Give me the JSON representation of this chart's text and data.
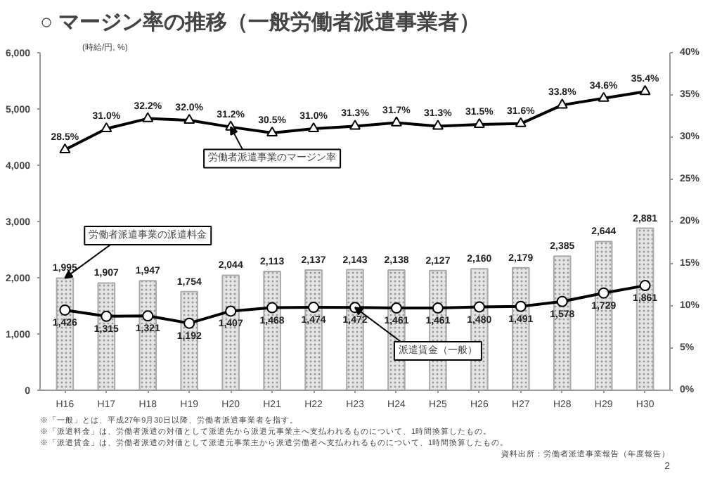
{
  "chart_data": {
    "type": "bar",
    "title": "○ マージン率の推移（一般労働者派遣事業者）",
    "ylabel": "(時給/円, %)",
    "categories": [
      "H16",
      "H17",
      "H18",
      "H19",
      "H20",
      "H21",
      "H22",
      "H23",
      "H24",
      "H25",
      "H26",
      "H27",
      "H28",
      "H29",
      "H30"
    ],
    "series": [
      {
        "name": "労働者派遣事業の派遣料金",
        "color": "#e4e4e4",
        "values": [
          1995,
          1907,
          1947,
          1754,
          2044,
          2113,
          2137,
          2143,
          2138,
          2127,
          2160,
          2179,
          2385,
          2644,
          2881
        ],
        "value_labels": [
          "1,995",
          "1,907",
          "1,947",
          "1,754",
          "2,044",
          "2,113",
          "2,137",
          "2,143",
          "2,138",
          "2,127",
          "2,160",
          "2,179",
          "2,385",
          "2,644",
          "2,881"
        ]
      },
      {
        "name": "派遣賃金（一般）",
        "type": "line",
        "marker": "circle",
        "color": "#000000",
        "values": [
          1426,
          1315,
          1321,
          1192,
          1407,
          1468,
          1474,
          1472,
          1461,
          1461,
          1480,
          1491,
          1578,
          1729,
          1861
        ],
        "value_labels": [
          "1,426",
          "1,315",
          "1,321",
          "1,192",
          "1,407",
          "1,468",
          "1,474",
          "1,472",
          "1,461",
          "1,461",
          "1,480",
          "1,491",
          "1,578",
          "1,729",
          "1,861"
        ]
      },
      {
        "name": "労働者派遣事業のマージン率",
        "type": "line",
        "marker": "triangle",
        "axis": "y2",
        "color": "#000000",
        "values": [
          28.5,
          31.0,
          32.2,
          32.0,
          31.2,
          30.5,
          31.0,
          31.3,
          31.7,
          31.3,
          31.5,
          31.6,
          33.8,
          34.6,
          35.4
        ],
        "value_labels": [
          "28.5%",
          "31.0%",
          "32.2%",
          "32.0%",
          "31.2%",
          "30.5%",
          "31.0%",
          "31.3%",
          "31.7%",
          "31.3%",
          "31.5%",
          "31.6%",
          "33.8%",
          "34.6%",
          "35.4%"
        ]
      }
    ],
    "ylim": [
      0,
      6000
    ],
    "yticks": [
      0,
      {
        "value": 1000,
        "label": "1,000"
      },
      {
        "value": 2000,
        "label": "2,000"
      },
      {
        "value": 3000,
        "label": "3,000"
      },
      {
        "value": 4000,
        "label": "4,000"
      },
      {
        "value": 5000,
        "label": "5,000"
      },
      {
        "value": 6000,
        "label": "6,000"
      }
    ],
    "y2lim": [
      0,
      40
    ],
    "y2ticks": [
      {
        "value": 0,
        "label": "0%"
      },
      {
        "value": 5,
        "label": "5%"
      },
      {
        "value": 10,
        "label": "10%"
      },
      {
        "value": 15,
        "label": "15%"
      },
      {
        "value": 20,
        "label": "20%"
      },
      {
        "value": 25,
        "label": "25%"
      },
      {
        "value": 30,
        "label": "30%"
      },
      {
        "value": 35,
        "label": "35%"
      },
      {
        "value": 40,
        "label": "40%"
      }
    ],
    "grid": false,
    "annotations": [
      "※「一般」とは、平成27年9月30日以降、労働者派遣事業者を指す。",
      "※「派遣料金」は、労働者派遣の対価として派遣先から派遣元事業主へ支払われるものについて、1時間換算したもの。",
      "※「派遣賃金」は、労働者派遣の対価として派遣元事業主から派遣労働者へ支払われるものについて、1時間換算したもの。",
      "資料出所：労働者派遣事業報告（年度報告）",
      "2"
    ]
  }
}
